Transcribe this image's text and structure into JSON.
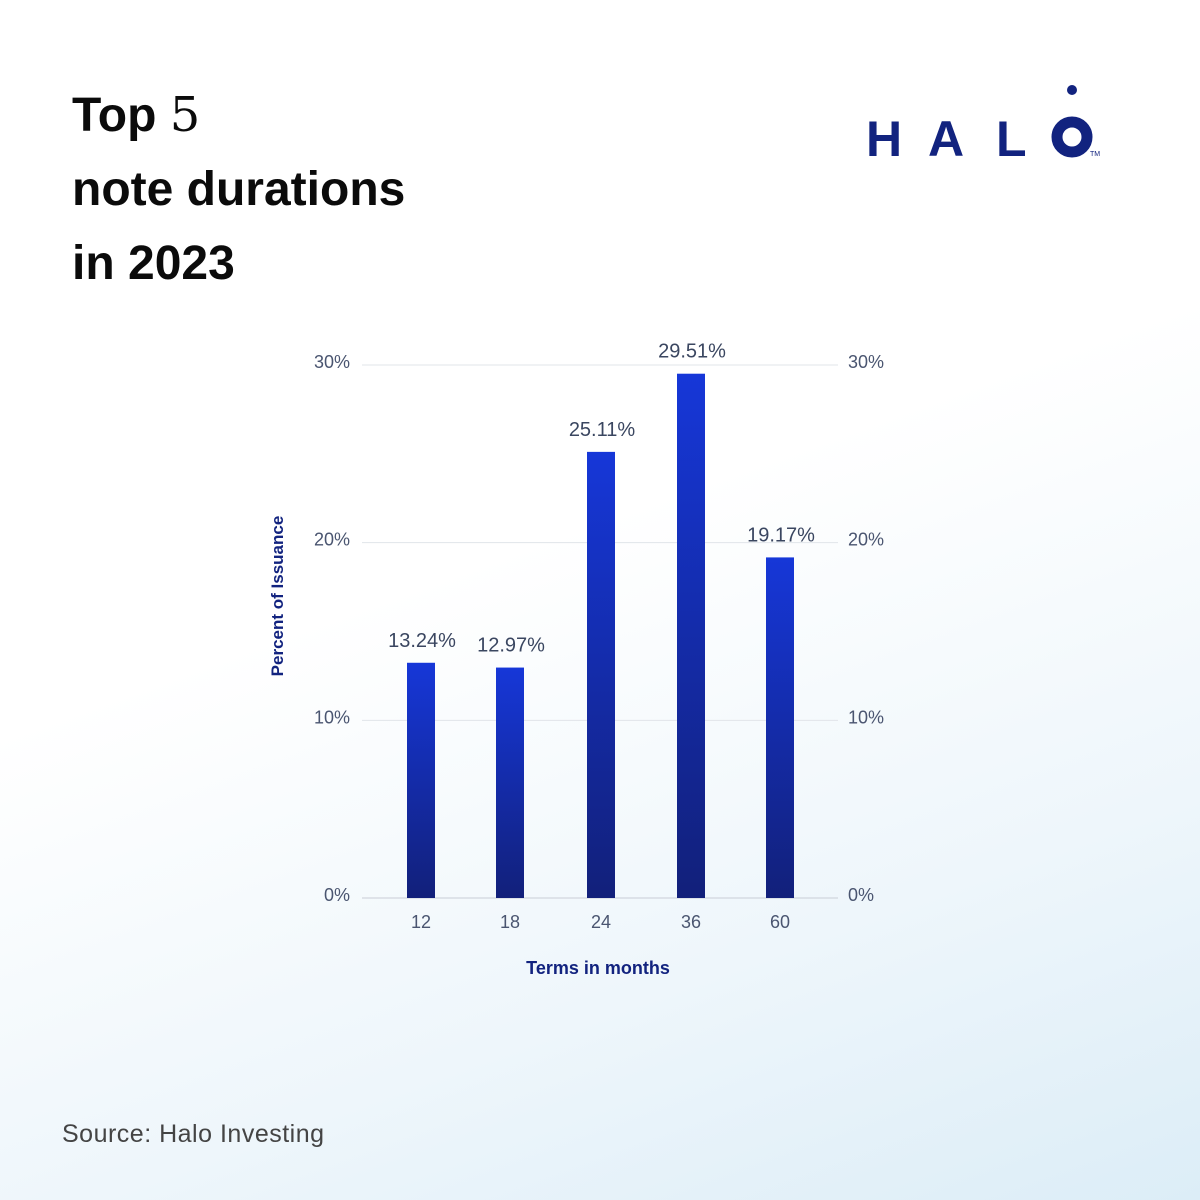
{
  "title": {
    "line1_a": "Top ",
    "line1_b": "5",
    "line2": "note durations",
    "line3": "in 2023"
  },
  "logo": {
    "text": "HALO",
    "tm": "TM"
  },
  "source": "Source: Halo Investing",
  "colors": {
    "bar_top": "#1637d8",
    "bar_bottom": "#12207a",
    "axis_title": "#12237f",
    "text": "#3a4660"
  },
  "chart_data": {
    "type": "bar",
    "categories": [
      "12",
      "18",
      "24",
      "36",
      "60"
    ],
    "values": [
      13.24,
      12.97,
      25.11,
      29.51,
      19.17
    ],
    "data_labels": [
      "13.24%",
      "12.97%",
      "25.11%",
      "29.51%",
      "19.17%"
    ],
    "xlabel": "Terms in months",
    "ylabel": "Percent of Issuance",
    "ylim": [
      0,
      30
    ],
    "yticks": [
      0,
      10,
      20,
      30
    ],
    "ytick_labels": [
      "0%",
      "10%",
      "20%",
      "30%"
    ],
    "grid": true,
    "secondary_y_axis": true
  }
}
